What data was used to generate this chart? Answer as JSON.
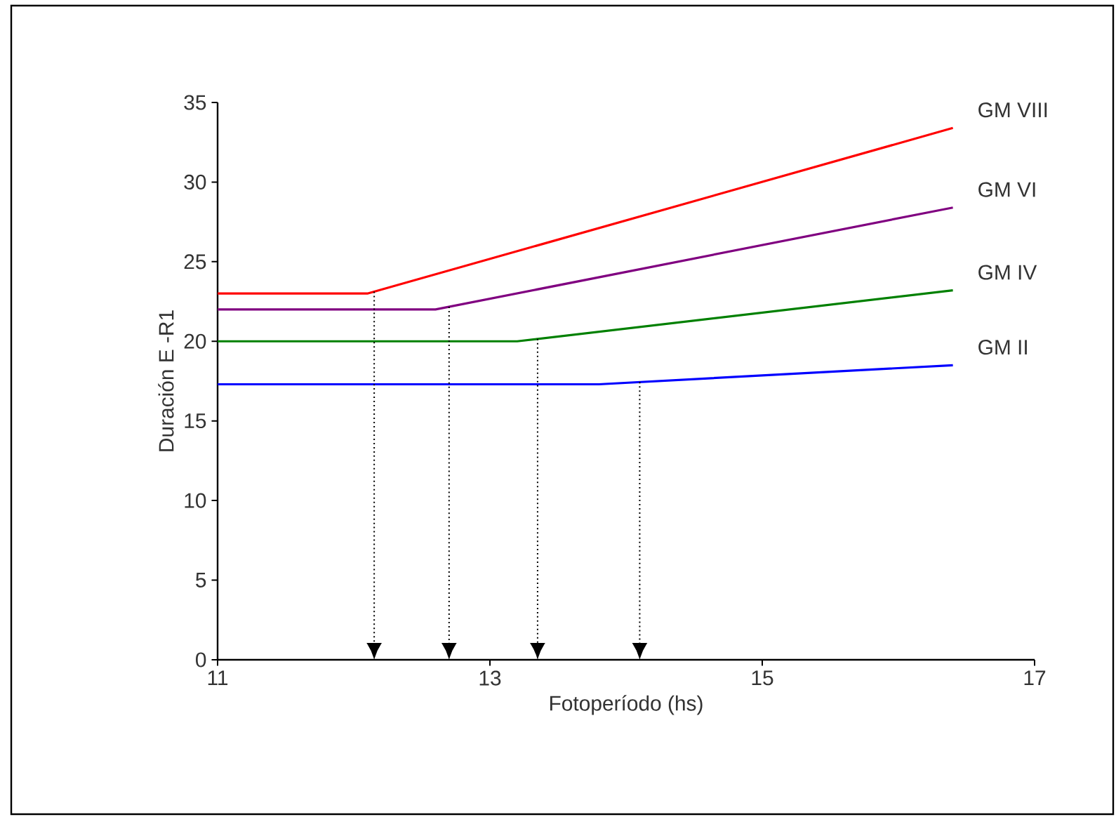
{
  "chart_data": {
    "type": "line",
    "xlabel": "Fotoperíodo (hs)",
    "ylabel": "Duración E -R1",
    "xlim": [
      11,
      17
    ],
    "xticks": [
      11,
      13,
      15,
      17
    ],
    "ylim": [
      0,
      35
    ],
    "yticks": [
      0,
      5,
      10,
      15,
      20,
      25,
      30,
      35
    ],
    "grid": false,
    "legend": false,
    "marker": "none",
    "line_style": "solid",
    "series": [
      {
        "name": "GM VIII",
        "color": "#ff0000",
        "x": [
          11,
          12.1,
          16.4
        ],
        "values": [
          23,
          23,
          33.4
        ]
      },
      {
        "name": "GM VI",
        "color": "#800080",
        "x": [
          11,
          12.6,
          16.4
        ],
        "values": [
          22,
          22,
          28.4
        ]
      },
      {
        "name": "GM IV",
        "color": "#008000",
        "x": [
          11,
          13.2,
          16.4
        ],
        "values": [
          20,
          20,
          23.2
        ]
      },
      {
        "name": "GM II",
        "color": "#0000ff",
        "x": [
          11,
          13.8,
          16.4
        ],
        "values": [
          17.3,
          17.3,
          18.5
        ]
      }
    ],
    "ref_lines": [
      {
        "axis": "x",
        "value": 12.15,
        "line_style": "dotted",
        "color": "#000000"
      },
      {
        "axis": "x",
        "value": 12.7,
        "line_style": "dotted",
        "color": "#000000"
      },
      {
        "axis": "x",
        "value": 13.35,
        "line_style": "dotted",
        "color": "#000000"
      },
      {
        "axis": "x",
        "value": 14.1,
        "line_style": "dotted",
        "color": "#000000"
      }
    ]
  }
}
